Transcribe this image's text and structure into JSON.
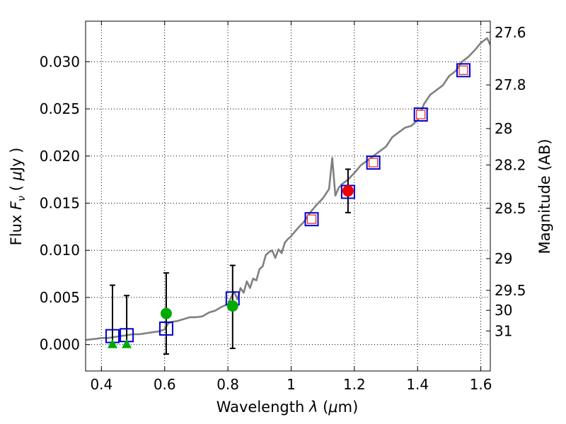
{
  "chart_data": {
    "type": "scatter",
    "xlabel_main": "Wavelength",
    "xlabel_symbol": "λ",
    "xlabel_unit_open": " (",
    "xlabel_unit_mu": "μ",
    "xlabel_unit_close": "m)",
    "ylabel_main": "Flux",
    "ylabel_symbol": "F",
    "ylabel_symbol_sub": "ν",
    "ylabel_unit_open": "( ",
    "ylabel_unit_mu": "μ",
    "ylabel_unit_close": "Jy )",
    "y2label": "Magnitude (AB)",
    "xlim": [
      0.35,
      1.63
    ],
    "ylim": [
      -0.0028,
      0.0343
    ],
    "x_ticks": [
      0.4,
      0.6,
      0.8,
      1.0,
      1.2,
      1.4,
      1.6
    ],
    "x_tick_labels": [
      "0.4",
      "0.6",
      "0.8",
      "1",
      "1.2",
      "1.4",
      "1.6"
    ],
    "y_ticks": [
      0.0,
      0.005,
      0.01,
      0.015,
      0.02,
      0.025,
      0.03
    ],
    "y_tick_labels": [
      "0.000",
      "0.005",
      "0.010",
      "0.015",
      "0.020",
      "0.025",
      "0.030"
    ],
    "mag_ticks": [
      27.6,
      27.8,
      28.0,
      28.2,
      28.5,
      29.0,
      29.5,
      30.0,
      31.0
    ],
    "mag_tick_labels": [
      "27.6",
      "27.8",
      "28",
      "28.2",
      "28.5",
      "29",
      "29.5",
      "30",
      "31"
    ],
    "grid": true,
    "series": [
      {
        "name": "model spectrum",
        "kind": "line",
        "color": "#808080",
        "x": [
          0.35,
          0.38,
          0.4,
          0.42,
          0.44,
          0.46,
          0.48,
          0.5,
          0.52,
          0.54,
          0.56,
          0.58,
          0.6,
          0.61,
          0.62,
          0.64,
          0.66,
          0.68,
          0.7,
          0.72,
          0.74,
          0.76,
          0.78,
          0.8,
          0.81,
          0.82,
          0.83,
          0.84,
          0.85,
          0.86,
          0.87,
          0.88,
          0.89,
          0.9,
          0.91,
          0.92,
          0.93,
          0.94,
          0.95,
          0.96,
          0.97,
          0.98,
          0.99,
          1.0,
          1.02,
          1.04,
          1.06,
          1.08,
          1.1,
          1.12,
          1.13,
          1.14,
          1.15,
          1.16,
          1.18,
          1.2,
          1.22,
          1.24,
          1.26,
          1.28,
          1.3,
          1.32,
          1.34,
          1.36,
          1.38,
          1.4,
          1.42,
          1.44,
          1.46,
          1.48,
          1.5,
          1.52,
          1.54,
          1.56,
          1.58,
          1.6,
          1.62,
          1.63
        ],
        "y": [
          0.0005,
          0.0006,
          0.0007,
          0.0007,
          0.0008,
          0.0009,
          0.001,
          0.0011,
          0.0011,
          0.0012,
          0.0013,
          0.0014,
          0.0016,
          0.0022,
          0.0024,
          0.0025,
          0.0027,
          0.0029,
          0.0029,
          0.003,
          0.0034,
          0.0036,
          0.004,
          0.0043,
          0.005,
          0.0056,
          0.0048,
          0.006,
          0.0055,
          0.0067,
          0.006,
          0.007,
          0.0068,
          0.008,
          0.0083,
          0.0095,
          0.0098,
          0.01,
          0.0092,
          0.0101,
          0.0097,
          0.0108,
          0.0112,
          0.0115,
          0.0123,
          0.013,
          0.014,
          0.0148,
          0.0155,
          0.0165,
          0.0198,
          0.0158,
          0.0166,
          0.017,
          0.0175,
          0.0182,
          0.019,
          0.0195,
          0.02,
          0.0205,
          0.021,
          0.022,
          0.0225,
          0.023,
          0.0232,
          0.0238,
          0.0255,
          0.0265,
          0.027,
          0.0275,
          0.0285,
          0.029,
          0.03,
          0.0305,
          0.0312,
          0.032,
          0.0325,
          0.0318
        ]
      },
      {
        "name": "model photometry",
        "kind": "open-square",
        "color": "#0000cc",
        "x": [
          0.435,
          0.48,
          0.605,
          0.815,
          1.065,
          1.18,
          1.26,
          1.41,
          1.545
        ],
        "y": [
          0.0009,
          0.001,
          0.0017,
          0.0049,
          0.0133,
          0.0162,
          0.0193,
          0.0244,
          0.0291
        ]
      },
      {
        "name": "small squares",
        "kind": "inner-square",
        "color": "#e03030",
        "x": [
          1.065,
          1.26,
          1.41,
          1.545
        ],
        "y": [
          0.0133,
          0.0193,
          0.0244,
          0.0291
        ]
      },
      {
        "name": "detection",
        "kind": "filled-circle",
        "color": "#00aa00",
        "x": [
          0.605,
          0.815
        ],
        "y": [
          0.0033,
          0.0041
        ]
      },
      {
        "name": "upper limit",
        "kind": "filled-triangle",
        "color": "#00aa00",
        "x": [
          0.435,
          0.48
        ],
        "y": [
          0.0,
          0.0
        ]
      },
      {
        "name": "red detection",
        "kind": "filled-circle",
        "color": "#ee0000",
        "x": [
          1.18
        ],
        "y": [
          0.0163
        ]
      }
    ],
    "error_bars": [
      {
        "x": 0.435,
        "low": 0.0,
        "high": 0.0063
      },
      {
        "x": 0.48,
        "low": 0.0,
        "high": 0.0052
      },
      {
        "x": 0.605,
        "low": -0.001,
        "high": 0.0076
      },
      {
        "x": 0.815,
        "low": -0.0004,
        "high": 0.0084
      },
      {
        "x": 1.18,
        "low": 0.014,
        "high": 0.0186
      }
    ]
  }
}
